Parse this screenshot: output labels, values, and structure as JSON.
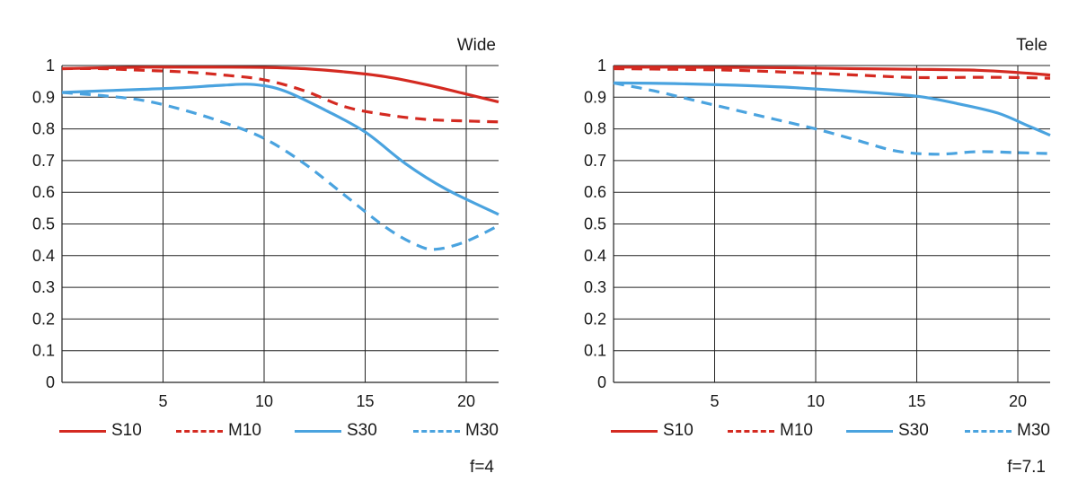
{
  "colors": {
    "red": "#d42a21",
    "blue": "#4aa3df",
    "grid": "#222222",
    "text": "#1a1a1a"
  },
  "chart_data": [
    {
      "type": "line",
      "title": "Wide",
      "footer": "f=4",
      "xlim": [
        0,
        21.6
      ],
      "ylim": [
        0,
        1
      ],
      "xticks": [
        5,
        10,
        15,
        20
      ],
      "yticks": [
        0,
        0.1,
        0.2,
        0.3,
        0.4,
        0.5,
        0.6,
        0.7,
        0.8,
        0.9,
        1
      ],
      "ytick_labels": [
        "0",
        "0.1",
        "0.2",
        "0.3",
        "0.4",
        "0.5",
        "0.6",
        "0.7",
        "0.8",
        "0.9",
        "1"
      ],
      "series": [
        {
          "name": "S10",
          "color": "#d42a21",
          "style": "solid",
          "x": [
            0,
            2,
            4,
            6,
            8,
            10,
            12,
            14,
            16,
            18,
            20,
            21.6
          ],
          "y": [
            0.99,
            0.993,
            0.995,
            0.995,
            0.995,
            0.994,
            0.99,
            0.98,
            0.965,
            0.94,
            0.91,
            0.885
          ]
        },
        {
          "name": "M10",
          "color": "#d42a21",
          "style": "dashed",
          "x": [
            0,
            2,
            4,
            6,
            8,
            10,
            12,
            14,
            16,
            18,
            20,
            21.6
          ],
          "y": [
            0.99,
            0.99,
            0.985,
            0.98,
            0.97,
            0.955,
            0.92,
            0.87,
            0.845,
            0.83,
            0.825,
            0.822
          ]
        },
        {
          "name": "S30",
          "color": "#4aa3df",
          "style": "solid",
          "x": [
            0,
            2,
            4,
            6,
            8,
            9.5,
            11,
            13,
            15,
            17,
            19,
            21.6
          ],
          "y": [
            0.915,
            0.92,
            0.925,
            0.93,
            0.938,
            0.94,
            0.92,
            0.86,
            0.79,
            0.69,
            0.61,
            0.53
          ]
        },
        {
          "name": "M30",
          "color": "#4aa3df",
          "style": "dashed",
          "x": [
            0,
            2,
            4,
            6,
            8,
            10,
            12,
            14,
            16,
            17.5,
            18.5,
            20,
            21.6
          ],
          "y": [
            0.915,
            0.905,
            0.89,
            0.86,
            0.82,
            0.77,
            0.69,
            0.59,
            0.49,
            0.435,
            0.42,
            0.445,
            0.495
          ]
        }
      ]
    },
    {
      "type": "line",
      "title": "Tele",
      "footer": "f=7.1",
      "xlim": [
        0,
        21.6
      ],
      "ylim": [
        0,
        1
      ],
      "xticks": [
        5,
        10,
        15,
        20
      ],
      "yticks": [
        0,
        0.1,
        0.2,
        0.3,
        0.4,
        0.5,
        0.6,
        0.7,
        0.8,
        0.9,
        1
      ],
      "ytick_labels": [
        "0",
        "0.1",
        "0.2",
        "0.3",
        "0.4",
        "0.5",
        "0.6",
        "0.7",
        "0.8",
        "0.9",
        "1"
      ],
      "series": [
        {
          "name": "S10",
          "color": "#d42a21",
          "style": "solid",
          "x": [
            0,
            3,
            6,
            9,
            12,
            15,
            18,
            20,
            21.6
          ],
          "y": [
            0.995,
            0.995,
            0.994,
            0.993,
            0.99,
            0.988,
            0.985,
            0.978,
            0.97
          ]
        },
        {
          "name": "M10",
          "color": "#d42a21",
          "style": "dashed",
          "x": [
            0,
            3,
            6,
            9,
            12,
            15,
            18,
            20,
            21.6
          ],
          "y": [
            0.99,
            0.988,
            0.985,
            0.978,
            0.97,
            0.962,
            0.963,
            0.962,
            0.96
          ]
        },
        {
          "name": "S30",
          "color": "#4aa3df",
          "style": "solid",
          "x": [
            0,
            3,
            6,
            9,
            12,
            15,
            17,
            19,
            20.5,
            21.6
          ],
          "y": [
            0.945,
            0.943,
            0.938,
            0.93,
            0.918,
            0.903,
            0.88,
            0.85,
            0.81,
            0.78
          ]
        },
        {
          "name": "M30",
          "color": "#4aa3df",
          "style": "dashed",
          "x": [
            0,
            2,
            4,
            6,
            8,
            10,
            12,
            14,
            16,
            18,
            20,
            21.6
          ],
          "y": [
            0.945,
            0.92,
            0.89,
            0.86,
            0.83,
            0.8,
            0.765,
            0.73,
            0.72,
            0.728,
            0.725,
            0.722
          ]
        }
      ]
    }
  ]
}
